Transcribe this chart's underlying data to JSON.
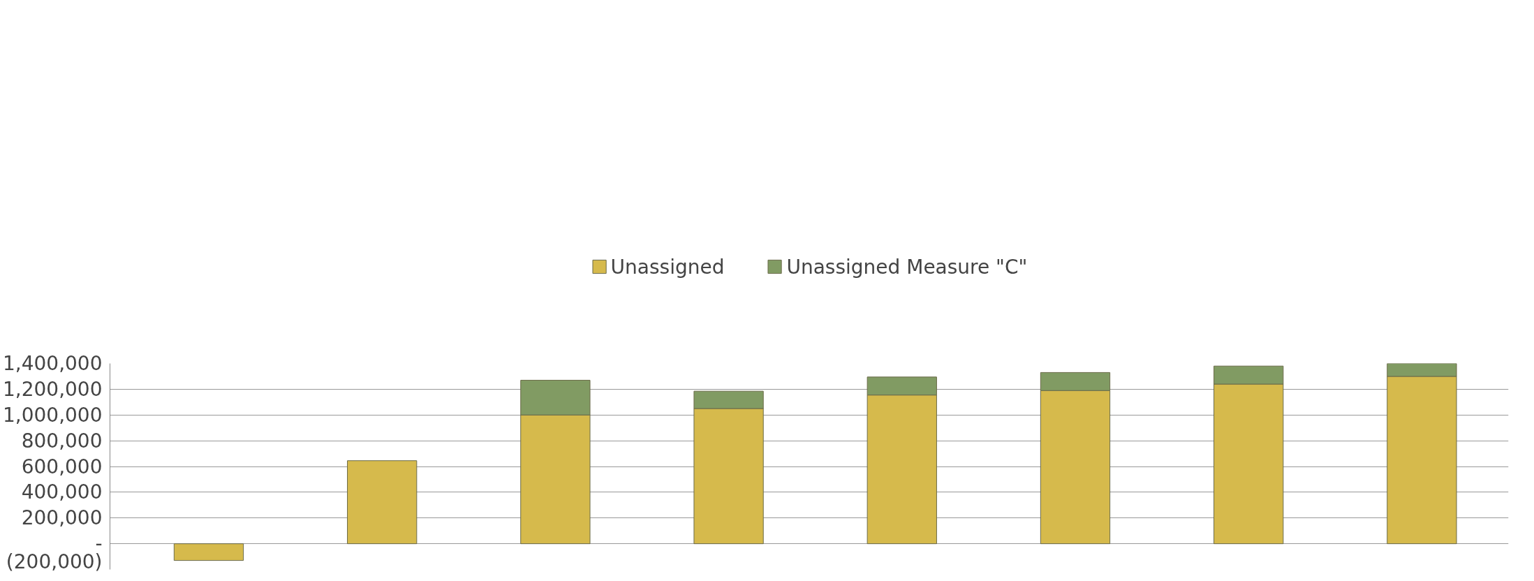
{
  "chart_data": {
    "type": "bar",
    "stacked": true,
    "categories": [
      null,
      null,
      null,
      null,
      null,
      null,
      null,
      null
    ],
    "series": [
      {
        "name": "Unassigned",
        "color": "#d6ba4c",
        "values": [
          -130000,
          645000,
          1000000,
          1050000,
          1155000,
          1190000,
          1240000,
          1300000
        ]
      },
      {
        "name": "Unassigned Measure \"C\"",
        "color": "#819b63",
        "values": [
          null,
          null,
          270000,
          135000,
          140000,
          140000,
          140000,
          100000
        ]
      }
    ],
    "ylim": [
      -200000,
      1400000
    ],
    "yticks": [
      {
        "value": -200000,
        "label": "(200,000)"
      },
      {
        "value": 0,
        "label": "-"
      },
      {
        "value": 200000,
        "label": "200,000"
      },
      {
        "value": 400000,
        "label": "400,000"
      },
      {
        "value": 600000,
        "label": "600,000"
      },
      {
        "value": 800000,
        "label": "800,000"
      },
      {
        "value": 1000000,
        "label": "1,000,000"
      },
      {
        "value": 1200000,
        "label": "1,200,000"
      },
      {
        "value": 1400000,
        "label": "1,400,000"
      }
    ],
    "grid": "y",
    "legend": "top",
    "tick_labels": "y"
  }
}
